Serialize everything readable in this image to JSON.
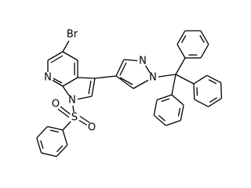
{
  "atoms": [
    "Br",
    "N",
    "N",
    "S",
    "O",
    "O",
    "N",
    "N"
  ]
}
